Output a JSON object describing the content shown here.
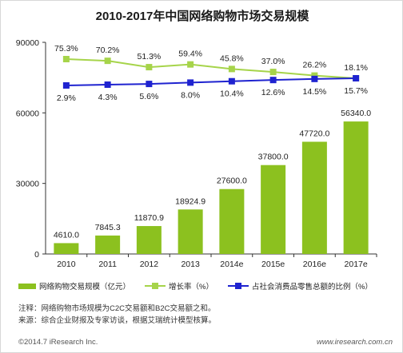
{
  "chart_data": {
    "type": "bar",
    "title": "2010-2017年中国网络购物市场交易规模",
    "categories": [
      "2010",
      "2011",
      "2012",
      "2013",
      "2014e",
      "2015e",
      "2016e",
      "2017e"
    ],
    "ylim": [
      0,
      90000
    ],
    "yticks": [
      "0",
      "30000",
      "60000",
      "90000"
    ],
    "grid": false,
    "series": [
      {
        "name": "网络购物交易规模（亿元）",
        "kind": "bar",
        "color": "#8cc11f",
        "values": [
          4610.0,
          7845.3,
          11870.9,
          18924.9,
          27600.0,
          37800.0,
          47720.0,
          56340.0
        ],
        "labels": [
          "4610.0",
          "7845.3",
          "11870.9",
          "18924.9",
          "27600.0",
          "37800.0",
          "47720.0",
          "56340.0"
        ]
      },
      {
        "name": "增长率（%）",
        "kind": "line",
        "color": "#a6d44a",
        "values": [
          75.3,
          70.2,
          51.3,
          59.4,
          45.8,
          37.0,
          26.2,
          18.1
        ],
        "labels": [
          "75.3%",
          "70.2%",
          "51.3%",
          "59.4%",
          "45.8%",
          "37.0%",
          "26.2%",
          "18.1%"
        ]
      },
      {
        "name": "占社会消费品零售总额的比例（%）",
        "kind": "line",
        "color": "#1f23d0",
        "values": [
          2.9,
          4.3,
          5.6,
          8.0,
          10.4,
          12.6,
          14.5,
          15.7
        ],
        "labels": [
          "2.9%",
          "4.3%",
          "5.6%",
          "8.0%",
          "10.4%",
          "12.6%",
          "14.5%",
          "15.7%"
        ]
      }
    ]
  },
  "notes": {
    "note": "注释：网络购物市场规模为C2C交易额和B2C交易额之和。",
    "source": "来源：综合企业财报及专家访谈，根据艾瑞统计模型核算。"
  },
  "footer": {
    "copyright": "©2014.7 iResearch Inc.",
    "website": "www.iresearch.com.cn"
  }
}
